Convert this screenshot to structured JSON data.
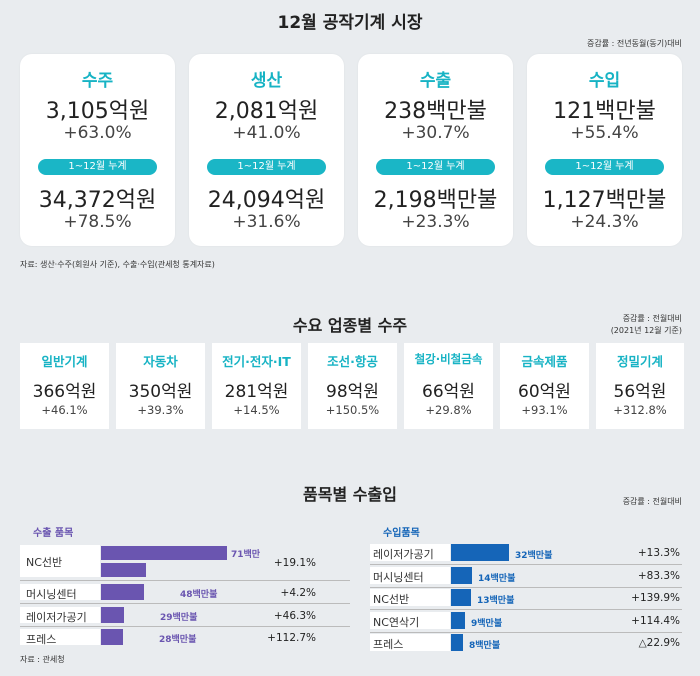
{
  "section1": {
    "title": "12월 공작기계 시장",
    "note": "증감률 : 전년동월(동기)대비",
    "cards": [
      {
        "heading": "수주",
        "value": "3,105억원",
        "change": "+63.0%",
        "pill": "1~12월 누계",
        "cum_value": "34,372억원",
        "cum_change": "+78.5%"
      },
      {
        "heading": "생산",
        "value": "2,081억원",
        "change": "+41.0%",
        "pill": "1~12월 누계",
        "cum_value": "24,094억원",
        "cum_change": "+31.6%"
      },
      {
        "heading": "수출",
        "value": "238백만불",
        "change": "+30.7%",
        "pill": "1~12월 누계",
        "cum_value": "2,198백만불",
        "cum_change": "+23.3%"
      },
      {
        "heading": "수입",
        "value": "121백만불",
        "change": "+55.4%",
        "pill": "1~12월 누계",
        "cum_value": "1,127백만불",
        "cum_change": "+24.3%"
      }
    ],
    "source": "자료: 생산·수주(회원사 기준), 수출·수입(관세청 통계자료)"
  },
  "section2": {
    "title": "수요 업종별 수주",
    "note1": "증감률 : 전월대비",
    "note2": "(2021년 12월 기준)",
    "items": [
      {
        "heading": "일반기계",
        "value": "366억원",
        "change": "+46.1%"
      },
      {
        "heading": "자동차",
        "value": "350억원",
        "change": "+39.3%"
      },
      {
        "heading": "전기·전자·IT",
        "value": "281억원",
        "change": "+14.5%"
      },
      {
        "heading": "조선·항공",
        "value": "98억원",
        "change": "+150.5%"
      },
      {
        "heading": "철강·비철금속",
        "value": "66억원",
        "change": "+29.8%"
      },
      {
        "heading": "금속제품",
        "value": "60억원",
        "change": "+93.1%"
      },
      {
        "heading": "정밀기계",
        "value": "56억원",
        "change": "+312.8%"
      }
    ]
  },
  "section3": {
    "title": "품목별 수출입",
    "note": "증감률 : 전월대비",
    "export_label": "수출 품목",
    "import_label": "수입품목",
    "source": "자료 : 관세청",
    "colors": {
      "export": "#6a55b0",
      "import": "#1565b8"
    },
    "exports": [
      {
        "item": "NC선반",
        "value": 71,
        "value_label": "71백만",
        "change": "+19.1%"
      },
      {
        "item": "머시닝센터",
        "value": 48,
        "value_label": "48백만불",
        "change": "+4.2%"
      },
      {
        "item": "레이저가공기",
        "value": 29,
        "value_label": "29백만불",
        "change": "+46.3%"
      },
      {
        "item": "프레스",
        "value": 28,
        "value_label": "28백만불",
        "change": "+112.7%"
      }
    ],
    "imports": [
      {
        "item": "레이저가공기",
        "value": 32,
        "value_label": "32백만불",
        "change": "+13.3%"
      },
      {
        "item": "머시닝센터",
        "value": 14,
        "value_label": "14백만불",
        "change": "+83.3%"
      },
      {
        "item": "NC선반",
        "value": 13,
        "value_label": "13백만불",
        "change": "+139.9%"
      },
      {
        "item": "NC연삭기",
        "value": 9,
        "value_label": "9백만불",
        "change": "+114.4%"
      },
      {
        "item": "프레스",
        "value": 8,
        "value_label": "8백만불",
        "change": "△22.9%"
      }
    ]
  }
}
